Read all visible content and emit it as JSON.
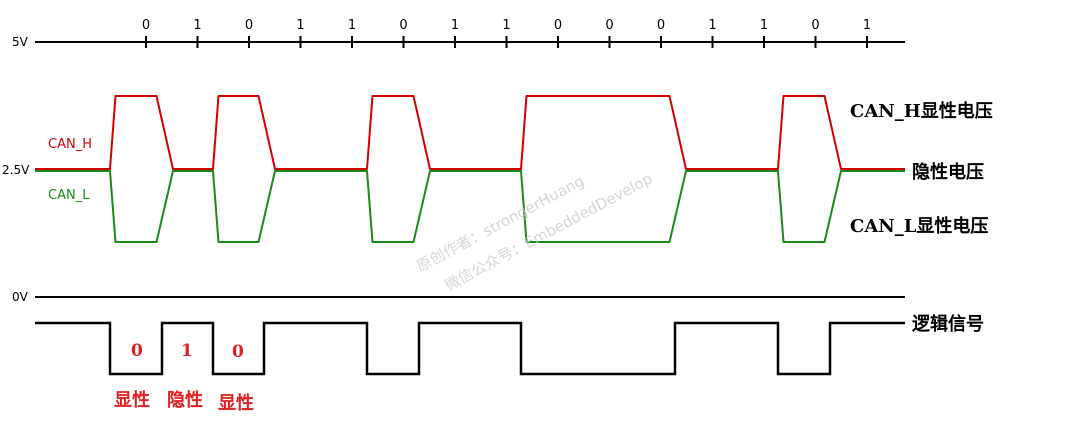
{
  "levels": {
    "v5": "5V",
    "v25": "2.5V",
    "v0": "0V"
  },
  "bits": [
    "0",
    "1",
    "0",
    "1",
    "1",
    "0",
    "1",
    "1",
    "0",
    "0",
    "0",
    "1",
    "1",
    "0",
    "1"
  ],
  "signals": {
    "can_h_label": "CAN_H",
    "can_l_label": "CAN_L",
    "can_h_color": "#d40000",
    "can_l_color": "#1a8a1a"
  },
  "annotations": {
    "can_h_dominant": "CAN_H显性电压",
    "recessive": "隐性电压",
    "can_l_dominant": "CAN_L显性电压",
    "logic_signal": "逻辑信号"
  },
  "logic_marks": [
    {
      "digit": "0",
      "label": "显性"
    },
    {
      "digit": "1",
      "label": "隐性"
    },
    {
      "digit": "0",
      "label": "显性"
    }
  ],
  "logic_sequence": [
    1,
    0,
    1,
    0,
    1,
    1,
    0,
    1,
    1,
    0,
    0,
    0,
    1,
    1,
    0,
    1
  ],
  "watermark": {
    "line1": "原创作者：strongerHuang",
    "line2": "微信公众号：EmbeddedDevelop"
  },
  "accent_red": "#e02020"
}
